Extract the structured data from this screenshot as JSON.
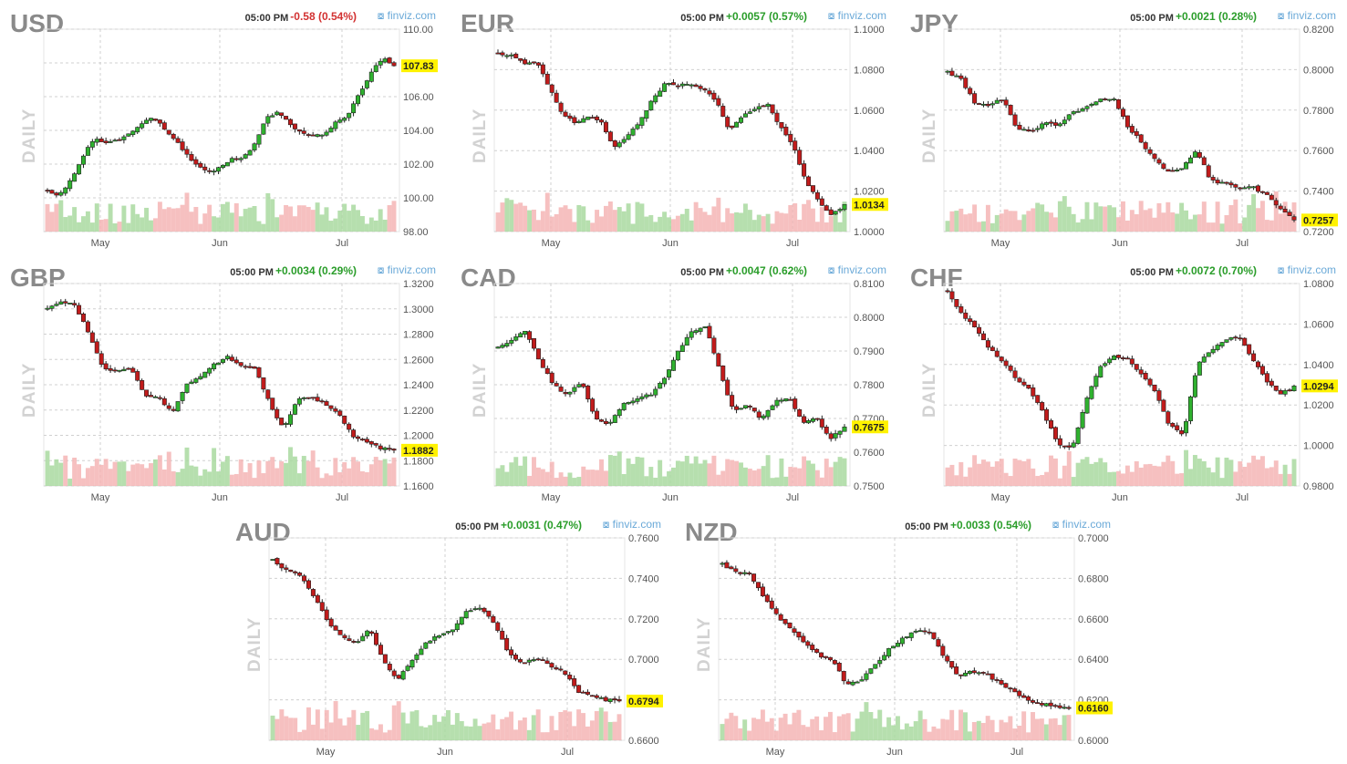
{
  "chart_data": [
    {
      "type": "candlestick",
      "title": "USD",
      "label": "DAILY",
      "time": "05:00 PM",
      "change": "-0.58 (0.54%)",
      "direction": "down",
      "source": "finviz.com",
      "y_ticks": [
        "110.00",
        "108.00",
        "106.00",
        "104.00",
        "102.00",
        "100.00",
        "98.00"
      ],
      "ylim": [
        98,
        110
      ],
      "x_ticks": [
        "May",
        "Jun",
        "Jul"
      ],
      "last": "107.83",
      "last_value": 107.83,
      "path": [
        100.4,
        100.1,
        101.0,
        102.4,
        103.5,
        103.2,
        103.4,
        103.8,
        104.3,
        104.8,
        104.2,
        103.5,
        102.6,
        101.9,
        101.5,
        101.8,
        102.3,
        102.4,
        103.2,
        104.8,
        105.1,
        104.3,
        103.9,
        103.7,
        103.8,
        104.5,
        104.9,
        106.2,
        107.4,
        108.3,
        107.83
      ]
    },
    {
      "type": "candlestick",
      "title": "EUR",
      "label": "DAILY",
      "time": "05:00 PM",
      "change": "+0.0057 (0.57%)",
      "direction": "up",
      "source": "finviz.com",
      "y_ticks": [
        "1.1000",
        "1.0800",
        "1.0600",
        "1.0400",
        "1.0200",
        "1.0000"
      ],
      "ylim": [
        1.0,
        1.1
      ],
      "x_ticks": [
        "May",
        "Jun",
        "Jul"
      ],
      "last": "1.0134",
      "last_value": 1.0134,
      "path": [
        1.088,
        1.087,
        1.083,
        1.084,
        1.071,
        1.058,
        1.054,
        1.057,
        1.055,
        1.041,
        1.046,
        1.054,
        1.065,
        1.073,
        1.072,
        1.073,
        1.07,
        1.065,
        1.05,
        1.057,
        1.061,
        1.063,
        1.052,
        1.043,
        1.024,
        1.015,
        1.008,
        1.0134
      ]
    },
    {
      "type": "candlestick",
      "title": "JPY",
      "label": "DAILY",
      "time": "05:00 PM",
      "change": "+0.0021 (0.28%)",
      "direction": "up",
      "source": "finviz.com",
      "y_ticks": [
        "0.8200",
        "0.8000",
        "0.7800",
        "0.7600",
        "0.7400",
        "0.7200"
      ],
      "ylim": [
        0.72,
        0.82
      ],
      "x_ticks": [
        "May",
        "Jun",
        "Jul"
      ],
      "last": "0.7257",
      "last_value": 0.7257,
      "path": [
        0.799,
        0.795,
        0.783,
        0.782,
        0.786,
        0.771,
        0.769,
        0.774,
        0.772,
        0.779,
        0.781,
        0.785,
        0.786,
        0.772,
        0.764,
        0.755,
        0.749,
        0.752,
        0.76,
        0.745,
        0.744,
        0.741,
        0.742,
        0.738,
        0.731,
        0.7257
      ]
    },
    {
      "type": "candlestick",
      "title": "GBP",
      "label": "DAILY",
      "time": "05:00 PM",
      "change": "+0.0034 (0.29%)",
      "direction": "up",
      "source": "finviz.com",
      "y_ticks": [
        "1.3200",
        "1.3000",
        "1.2800",
        "1.2600",
        "1.2400",
        "1.2200",
        "1.2000",
        "1.1800",
        "1.1600"
      ],
      "ylim": [
        1.16,
        1.32
      ],
      "x_ticks": [
        "May",
        "Jun",
        "Jul"
      ],
      "last": "1.1882",
      "last_value": 1.1882,
      "path": [
        1.3,
        1.305,
        1.303,
        1.28,
        1.254,
        1.25,
        1.253,
        1.232,
        1.23,
        1.218,
        1.24,
        1.247,
        1.256,
        1.262,
        1.255,
        1.252,
        1.226,
        1.205,
        1.228,
        1.23,
        1.225,
        1.218,
        1.2,
        1.195,
        1.19,
        1.1882
      ]
    },
    {
      "type": "candlestick",
      "title": "CAD",
      "label": "DAILY",
      "time": "05:00 PM",
      "change": "+0.0047 (0.62%)",
      "direction": "up",
      "source": "finviz.com",
      "y_ticks": [
        "0.8100",
        "0.8000",
        "0.7900",
        "0.7800",
        "0.7700",
        "0.7600",
        "0.7500"
      ],
      "ylim": [
        0.75,
        0.81
      ],
      "x_ticks": [
        "May",
        "Jun",
        "Jul"
      ],
      "last": "0.7675",
      "last_value": 0.7675,
      "path": [
        0.791,
        0.793,
        0.796,
        0.787,
        0.78,
        0.777,
        0.781,
        0.77,
        0.768,
        0.774,
        0.776,
        0.777,
        0.782,
        0.79,
        0.796,
        0.797,
        0.784,
        0.772,
        0.774,
        0.77,
        0.775,
        0.776,
        0.769,
        0.77,
        0.764,
        0.7675
      ]
    },
    {
      "type": "candlestick",
      "title": "CHF",
      "label": "DAILY",
      "time": "05:00 PM",
      "change": "+0.0072 (0.70%)",
      "direction": "up",
      "source": "finviz.com",
      "y_ticks": [
        "1.0800",
        "1.0600",
        "1.0400",
        "1.0200",
        "1.0000",
        "0.9800"
      ],
      "ylim": [
        0.98,
        1.08
      ],
      "x_ticks": [
        "May",
        "Jun",
        "Jul"
      ],
      "last": "1.0294",
      "last_value": 1.0294,
      "path": [
        1.076,
        1.065,
        1.058,
        1.048,
        1.041,
        1.033,
        1.027,
        1.015,
        1.0,
        0.999,
        1.022,
        1.039,
        1.044,
        1.043,
        1.035,
        1.026,
        1.01,
        1.005,
        1.04,
        1.047,
        1.052,
        1.054,
        1.043,
        1.032,
        1.025,
        1.0294
      ]
    },
    {
      "type": "candlestick",
      "title": "AUD",
      "label": "DAILY",
      "time": "05:00 PM",
      "change": "+0.0031 (0.47%)",
      "direction": "up",
      "source": "finviz.com",
      "y_ticks": [
        "0.7600",
        "0.7400",
        "0.7200",
        "0.7000",
        "0.6800",
        "0.6600"
      ],
      "ylim": [
        0.66,
        0.76
      ],
      "x_ticks": [
        "May",
        "Jun",
        "Jul"
      ],
      "last": "0.6794",
      "last_value": 0.6794,
      "path": [
        0.749,
        0.744,
        0.741,
        0.731,
        0.718,
        0.711,
        0.708,
        0.715,
        0.699,
        0.69,
        0.699,
        0.708,
        0.712,
        0.715,
        0.724,
        0.725,
        0.718,
        0.703,
        0.698,
        0.701,
        0.697,
        0.694,
        0.684,
        0.682,
        0.68,
        0.6794
      ]
    },
    {
      "type": "candlestick",
      "title": "NZD",
      "label": "DAILY",
      "time": "05:00 PM",
      "change": "+0.0033 (0.54%)",
      "direction": "up",
      "source": "finviz.com",
      "y_ticks": [
        "0.7000",
        "0.6800",
        "0.6600",
        "0.6400",
        "0.6200",
        "0.6000"
      ],
      "ylim": [
        0.6,
        0.7
      ],
      "x_ticks": [
        "May",
        "Jun",
        "Jul"
      ],
      "last": "0.6160",
      "last_value": 0.616,
      "path": [
        0.687,
        0.683,
        0.682,
        0.671,
        0.661,
        0.655,
        0.648,
        0.642,
        0.639,
        0.627,
        0.63,
        0.637,
        0.645,
        0.65,
        0.654,
        0.653,
        0.641,
        0.632,
        0.634,
        0.633,
        0.628,
        0.624,
        0.62,
        0.618,
        0.617,
        0.616
      ]
    }
  ]
}
